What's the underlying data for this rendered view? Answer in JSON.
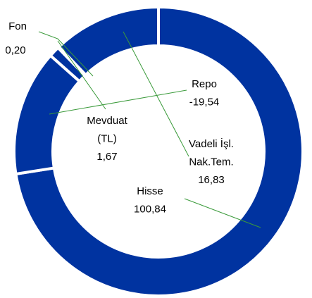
{
  "chart_data": {
    "type": "donut",
    "categories": [
      [
        "Hisse"
      ],
      [
        "Repo"
      ],
      [
        "Mevduat",
        "(TL)"
      ],
      [
        "Fon"
      ],
      [
        "Vadeli İşl.",
        "Nak.Tem."
      ]
    ],
    "values": [
      100.84,
      -19.54,
      1.67,
      0.2,
      16.83
    ],
    "value_labels": [
      "100,84",
      "-19,54",
      "1,67",
      "0,20",
      "16,83"
    ],
    "color": "#0033a0"
  }
}
